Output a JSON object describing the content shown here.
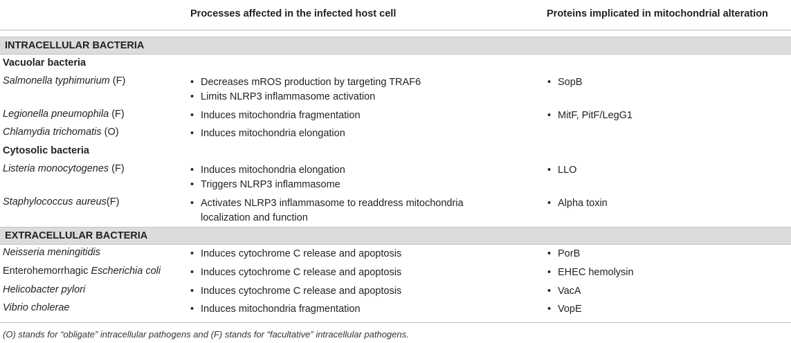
{
  "header": {
    "col_process": "Processes affected in the infected host cell",
    "col_proteins": "Proteins implicated in mitochondrial alteration"
  },
  "groups": {
    "intracellular": "INTRACELLULAR BACTERIA",
    "extracellular": "EXTRACELLULAR BACTERIA"
  },
  "subgroups": {
    "vacuolar": "Vacuolar bacteria",
    "cytosolic": "Cytosolic bacteria"
  },
  "bullet_glyph": "•",
  "rows": [
    {
      "prefix": "",
      "species": "Salmonella typhimurium",
      "suffix": " (F)",
      "processes": [
        "Decreases mROS production by targeting TRAF6",
        "Limits NLRP3 inflammasome activation"
      ],
      "proteins": [
        "SopB"
      ]
    },
    {
      "prefix": "",
      "species": "Legionella pneumophila",
      "suffix": " (F)",
      "processes": [
        "Induces mitochondria fragmentation"
      ],
      "proteins": [
        "MitF, PitF/LegG1"
      ]
    },
    {
      "prefix": "",
      "species": "Chlamydia trichomatis",
      "suffix": " (O)",
      "processes": [
        "Induces mitochondria elongation"
      ],
      "proteins": []
    },
    {
      "prefix": "",
      "species": "Listeria monocytogenes",
      "suffix": " (F)",
      "processes": [
        "Induces mitochondria elongation",
        "Triggers NLRP3 inflammasome"
      ],
      "proteins": [
        "LLO"
      ]
    },
    {
      "prefix": "",
      "species": "Staphylococcus aureus",
      "suffix": "(F)",
      "processes": [
        "Activates NLRP3 inflammasome to readdress mitochondria",
        "localization and function"
      ],
      "proteins": [
        "Alpha toxin"
      ]
    },
    {
      "prefix": "",
      "species": "Neisseria meningitidis",
      "suffix": "",
      "processes": [
        "Induces cytochrome C release and apoptosis"
      ],
      "proteins": [
        "PorB"
      ]
    },
    {
      "prefix": "Enterohemorrhagic ",
      "species": "Escherichia coli",
      "suffix": "",
      "processes": [
        "Induces cytochrome C release and apoptosis"
      ],
      "proteins": [
        "EHEC hemolysin"
      ]
    },
    {
      "prefix": "",
      "species": "Helicobacter pylori",
      "suffix": "",
      "processes": [
        "Induces cytochrome C release and apoptosis"
      ],
      "proteins": [
        "VacA"
      ]
    },
    {
      "prefix": "",
      "species": "Vibrio cholerae",
      "suffix": "",
      "processes": [
        "Induces mitochondria fragmentation"
      ],
      "proteins": [
        "VopE"
      ]
    }
  ],
  "footnote": "(O) stands for “obligate” intracellular pathogens and (F) stands for “facultative” intracellular pathogens."
}
